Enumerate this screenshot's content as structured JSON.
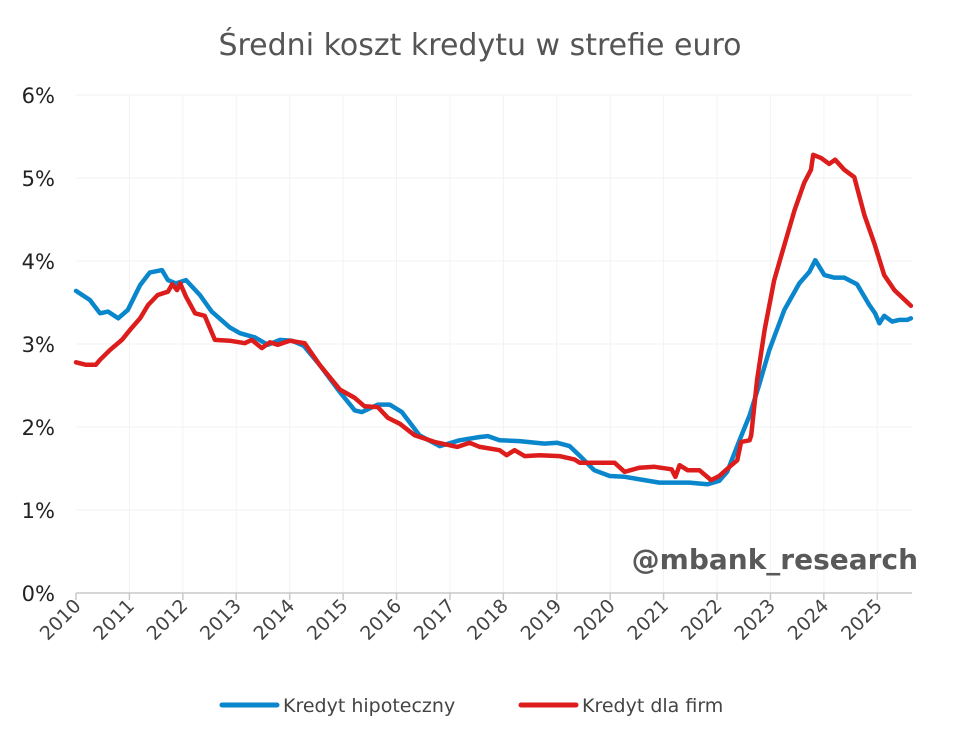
{
  "chart_data": {
    "type": "line",
    "title": "Średni koszt kredytu w strefie euro",
    "xlabel": "",
    "ylabel": "",
    "xlim": [
      2010,
      2025.65
    ],
    "ylim": [
      0,
      6
    ],
    "yticks": [
      0,
      1,
      2,
      3,
      4,
      5,
      6
    ],
    "ytick_labels": [
      "0%",
      "1%",
      "2%",
      "3%",
      "4%",
      "5%",
      "6%"
    ],
    "xtick_labels": [
      "2010",
      "2011",
      "2012",
      "2013",
      "2014",
      "2015",
      "2016",
      "2017",
      "2018",
      "2019",
      "2020",
      "2021",
      "2022",
      "2023",
      "2024",
      "2025"
    ],
    "grid": true,
    "legend_position": "bottom",
    "watermark": "@mbank_research",
    "series": [
      {
        "name": "Kredyt hipoteczny",
        "color": "#0a86cc",
        "x": [
          2010.0,
          2010.26,
          2010.45,
          2010.6,
          2010.79,
          2010.97,
          2011.2,
          2011.38,
          2011.61,
          2011.72,
          2011.87,
          2012.06,
          2012.32,
          2012.54,
          2012.88,
          2013.07,
          2013.35,
          2013.59,
          2013.82,
          2014.04,
          2014.26,
          2014.56,
          2014.94,
          2015.22,
          2015.35,
          2015.65,
          2015.87,
          2016.1,
          2016.43,
          2016.81,
          2017.18,
          2017.56,
          2017.71,
          2017.93,
          2018.3,
          2018.77,
          2019.01,
          2019.24,
          2019.42,
          2019.7,
          2019.99,
          2020.27,
          2020.64,
          2020.92,
          2021.48,
          2021.82,
          2022.04,
          2022.19,
          2022.42,
          2022.61,
          2022.79,
          2022.98,
          2023.26,
          2023.54,
          2023.73,
          2023.84,
          2024.01,
          2024.19,
          2024.38,
          2024.62,
          2024.85,
          2024.96,
          2025.04,
          2025.13,
          2025.28,
          2025.41,
          2025.56,
          2025.63
        ],
        "y": [
          3.64,
          3.53,
          3.37,
          3.39,
          3.31,
          3.41,
          3.71,
          3.86,
          3.89,
          3.77,
          3.73,
          3.77,
          3.59,
          3.39,
          3.2,
          3.13,
          3.08,
          2.99,
          3.05,
          3.04,
          2.98,
          2.75,
          2.42,
          2.2,
          2.18,
          2.27,
          2.27,
          2.18,
          1.9,
          1.77,
          1.84,
          1.88,
          1.89,
          1.84,
          1.83,
          1.8,
          1.81,
          1.77,
          1.66,
          1.48,
          1.41,
          1.4,
          1.36,
          1.33,
          1.33,
          1.31,
          1.35,
          1.46,
          1.84,
          2.14,
          2.51,
          2.93,
          3.41,
          3.73,
          3.87,
          4.01,
          3.83,
          3.8,
          3.8,
          3.72,
          3.47,
          3.37,
          3.25,
          3.34,
          3.27,
          3.29,
          3.29,
          3.31
        ]
      },
      {
        "name": "Kredyt dla firm",
        "color": "#dd1c1c",
        "x": [
          2010.0,
          2010.19,
          2010.37,
          2010.45,
          2010.64,
          2010.86,
          2011.01,
          2011.2,
          2011.35,
          2011.53,
          2011.72,
          2011.8,
          2011.89,
          2011.95,
          2012.06,
          2012.23,
          2012.41,
          2012.6,
          2012.88,
          2013.16,
          2013.29,
          2013.48,
          2013.63,
          2013.78,
          2014.0,
          2014.28,
          2014.56,
          2014.94,
          2015.22,
          2015.4,
          2015.65,
          2015.84,
          2016.06,
          2016.34,
          2016.71,
          2017.14,
          2017.37,
          2017.56,
          2017.93,
          2018.06,
          2018.21,
          2018.4,
          2018.68,
          2019.05,
          2019.33,
          2019.43,
          2019.8,
          2020.08,
          2020.27,
          2020.55,
          2020.83,
          2021.15,
          2021.22,
          2021.3,
          2021.45,
          2021.67,
          2021.89,
          2022.04,
          2022.27,
          2022.38,
          2022.45,
          2022.61,
          2022.64,
          2022.75,
          2022.89,
          2023.07,
          2023.26,
          2023.45,
          2023.63,
          2023.76,
          2023.8,
          2023.95,
          2024.1,
          2024.21,
          2024.38,
          2024.57,
          2024.76,
          2024.94,
          2025.13,
          2025.32,
          2025.63
        ],
        "y": [
          2.78,
          2.75,
          2.75,
          2.81,
          2.93,
          3.05,
          3.17,
          3.31,
          3.47,
          3.59,
          3.63,
          3.72,
          3.65,
          3.73,
          3.57,
          3.37,
          3.34,
          3.05,
          3.04,
          3.01,
          3.05,
          2.95,
          3.02,
          2.99,
          3.04,
          3.01,
          2.75,
          2.45,
          2.35,
          2.25,
          2.24,
          2.11,
          2.04,
          1.9,
          1.82,
          1.76,
          1.81,
          1.76,
          1.72,
          1.66,
          1.72,
          1.65,
          1.66,
          1.65,
          1.61,
          1.57,
          1.57,
          1.57,
          1.46,
          1.51,
          1.52,
          1.49,
          1.4,
          1.54,
          1.48,
          1.48,
          1.36,
          1.41,
          1.54,
          1.6,
          1.82,
          1.84,
          1.9,
          2.57,
          3.17,
          3.77,
          4.19,
          4.61,
          4.94,
          5.1,
          5.28,
          5.24,
          5.17,
          5.22,
          5.1,
          5.01,
          4.55,
          4.22,
          3.83,
          3.65,
          3.46
        ]
      }
    ]
  }
}
